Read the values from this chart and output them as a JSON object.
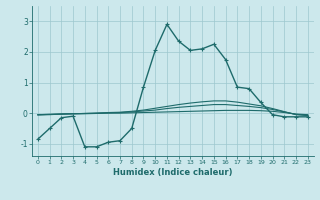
{
  "xlabel": "Humidex (Indice chaleur)",
  "bg_color": "#cce8ec",
  "grid_color": "#9dc8ce",
  "line_color": "#1e6b6b",
  "xlim": [
    -0.5,
    23.5
  ],
  "ylim": [
    -1.4,
    3.5
  ],
  "yticks": [
    -1,
    0,
    1,
    2,
    3
  ],
  "xticks": [
    0,
    1,
    2,
    3,
    4,
    5,
    6,
    7,
    8,
    9,
    10,
    11,
    12,
    13,
    14,
    15,
    16,
    17,
    18,
    19,
    20,
    21,
    22,
    23
  ],
  "main_line": {
    "x": [
      0,
      1,
      2,
      3,
      4,
      5,
      6,
      7,
      8,
      9,
      10,
      11,
      12,
      13,
      14,
      15,
      16,
      17,
      18,
      19,
      20,
      21,
      22,
      23
    ],
    "y": [
      -0.85,
      -0.5,
      -0.15,
      -0.1,
      -1.1,
      -1.1,
      -0.95,
      -0.9,
      -0.5,
      0.85,
      2.05,
      2.9,
      2.35,
      2.05,
      2.1,
      2.25,
      1.75,
      0.85,
      0.8,
      0.35,
      -0.05,
      -0.12,
      -0.12,
      -0.12
    ],
    "marker": "+",
    "markersize": 3.5,
    "linewidth": 1.0
  },
  "flat_lines": [
    {
      "x": [
        0,
        1,
        2,
        3,
        4,
        5,
        6,
        7,
        8,
        9,
        10,
        11,
        12,
        13,
        14,
        15,
        16,
        17,
        18,
        19,
        20,
        21,
        22,
        23
      ],
      "y": [
        -0.05,
        -0.04,
        -0.03,
        -0.02,
        -0.02,
        -0.01,
        0.0,
        0.0,
        0.01,
        0.02,
        0.03,
        0.04,
        0.05,
        0.06,
        0.07,
        0.08,
        0.09,
        0.09,
        0.09,
        0.08,
        0.06,
        0.02,
        -0.03,
        -0.05
      ],
      "linewidth": 0.8
    },
    {
      "x": [
        0,
        1,
        2,
        3,
        4,
        5,
        6,
        7,
        8,
        9,
        10,
        11,
        12,
        13,
        14,
        15,
        16,
        17,
        18,
        19,
        20,
        21,
        22,
        23
      ],
      "y": [
        -0.05,
        -0.04,
        -0.03,
        -0.02,
        -0.01,
        0.0,
        0.01,
        0.02,
        0.04,
        0.07,
        0.1,
        0.15,
        0.19,
        0.22,
        0.25,
        0.28,
        0.28,
        0.25,
        0.22,
        0.18,
        0.12,
        0.04,
        -0.04,
        -0.07
      ],
      "linewidth": 0.8
    },
    {
      "x": [
        0,
        1,
        2,
        3,
        4,
        5,
        6,
        7,
        8,
        9,
        10,
        11,
        12,
        13,
        14,
        15,
        16,
        17,
        18,
        19,
        20,
        21,
        22,
        23
      ],
      "y": [
        -0.06,
        -0.05,
        -0.03,
        -0.02,
        -0.01,
        0.0,
        0.02,
        0.03,
        0.06,
        0.1,
        0.16,
        0.22,
        0.28,
        0.33,
        0.37,
        0.4,
        0.4,
        0.36,
        0.3,
        0.24,
        0.15,
        0.05,
        -0.05,
        -0.08
      ],
      "linewidth": 0.8
    }
  ]
}
